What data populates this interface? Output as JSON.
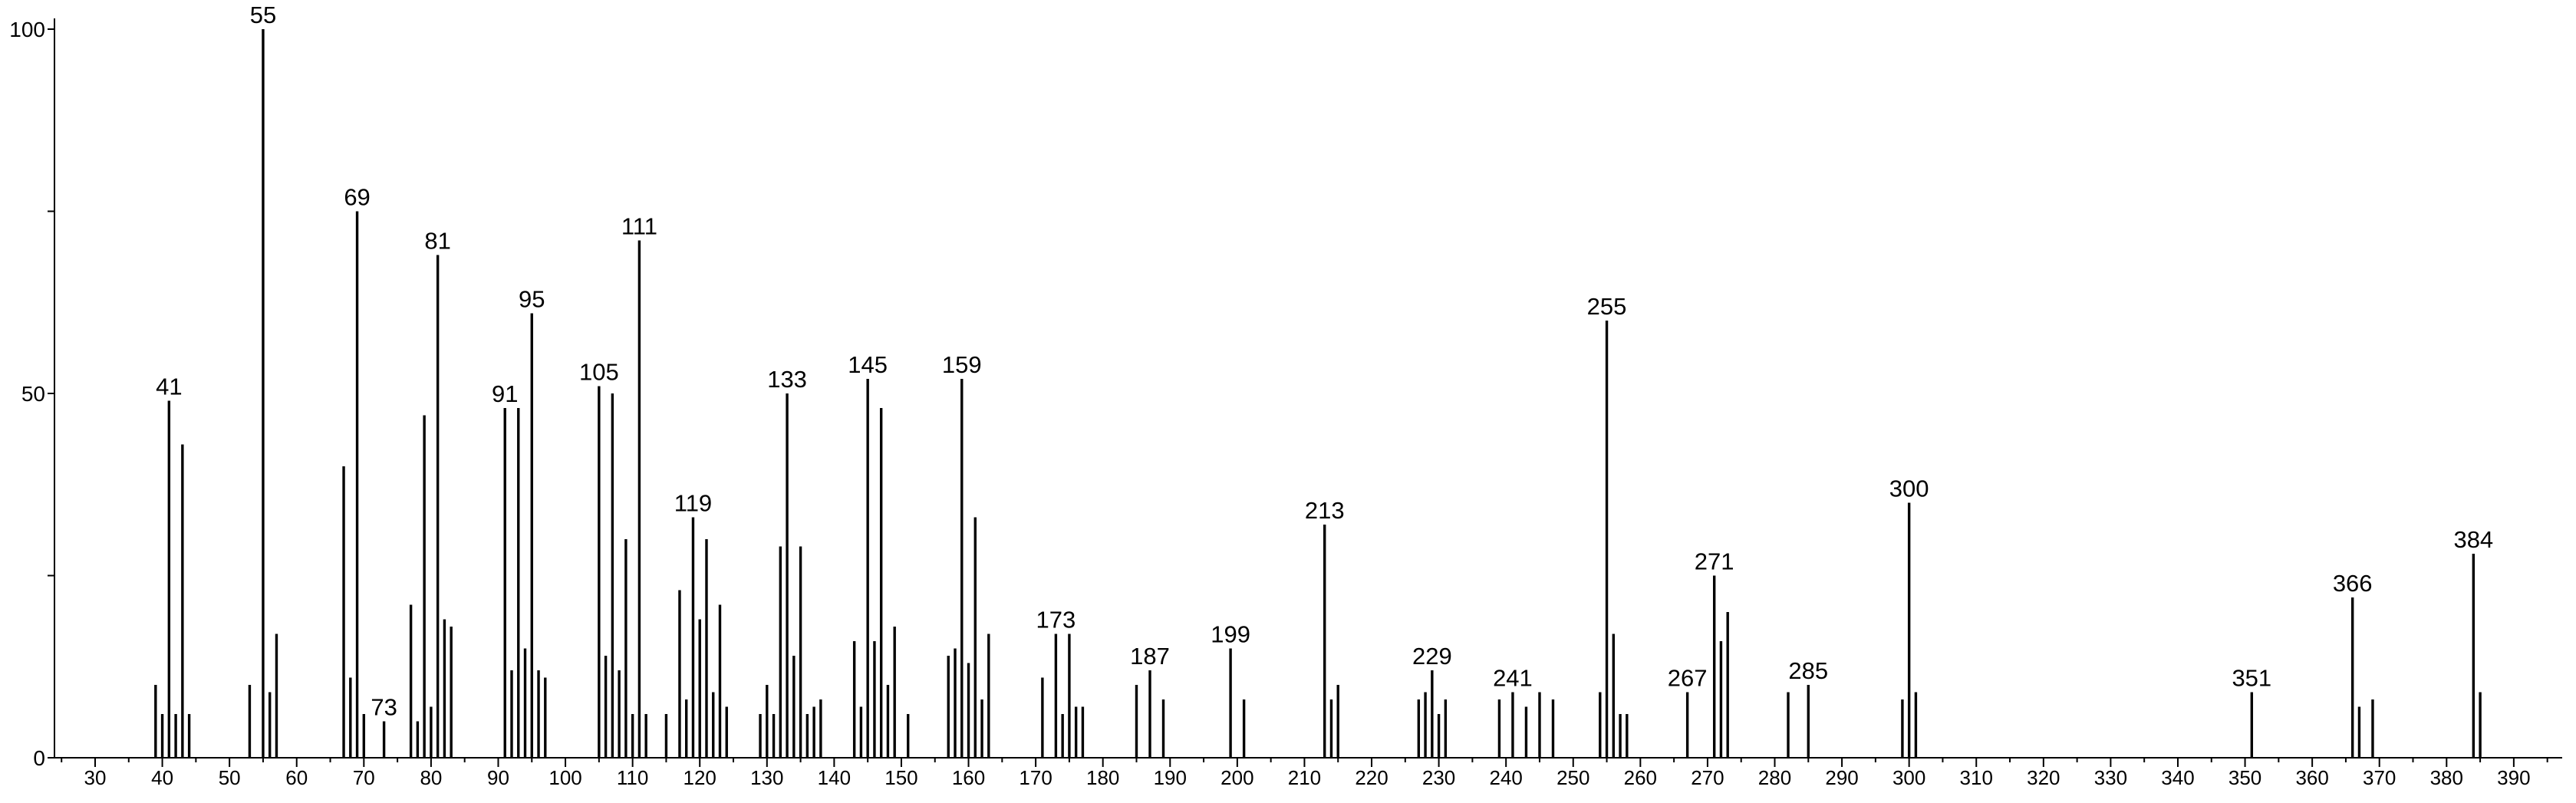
{
  "chart_data": {
    "type": "bar",
    "title": "",
    "xlabel": "",
    "ylabel": "",
    "xlim": [
      23,
      396
    ],
    "ylim": [
      0,
      100
    ],
    "grid": false,
    "x_ticks": [
      30,
      40,
      50,
      60,
      70,
      80,
      90,
      100,
      110,
      120,
      130,
      140,
      150,
      160,
      170,
      180,
      190,
      200,
      210,
      220,
      230,
      240,
      250,
      260,
      270,
      280,
      290,
      300,
      310,
      320,
      330,
      340,
      350,
      360,
      370,
      380,
      390
    ],
    "y_ticks": [
      0,
      50,
      100
    ],
    "peaks": [
      {
        "mz": 39,
        "intensity": 10
      },
      {
        "mz": 40,
        "intensity": 6
      },
      {
        "mz": 41,
        "intensity": 49,
        "label": "41"
      },
      {
        "mz": 42,
        "intensity": 6
      },
      {
        "mz": 43,
        "intensity": 43
      },
      {
        "mz": 44,
        "intensity": 6
      },
      {
        "mz": 53,
        "intensity": 10
      },
      {
        "mz": 55,
        "intensity": 100,
        "label": "55"
      },
      {
        "mz": 56,
        "intensity": 9
      },
      {
        "mz": 57,
        "intensity": 17
      },
      {
        "mz": 67,
        "intensity": 40
      },
      {
        "mz": 68,
        "intensity": 11
      },
      {
        "mz": 69,
        "intensity": 75,
        "label": "69"
      },
      {
        "mz": 70,
        "intensity": 6
      },
      {
        "mz": 73,
        "intensity": 5,
        "label": "73"
      },
      {
        "mz": 77,
        "intensity": 21
      },
      {
        "mz": 78,
        "intensity": 5
      },
      {
        "mz": 79,
        "intensity": 47
      },
      {
        "mz": 80,
        "intensity": 7
      },
      {
        "mz": 81,
        "intensity": 69,
        "label": "81"
      },
      {
        "mz": 82,
        "intensity": 19
      },
      {
        "mz": 83,
        "intensity": 18
      },
      {
        "mz": 91,
        "intensity": 48,
        "label": "91"
      },
      {
        "mz": 92,
        "intensity": 12
      },
      {
        "mz": 93,
        "intensity": 48
      },
      {
        "mz": 94,
        "intensity": 15
      },
      {
        "mz": 95,
        "intensity": 61,
        "label": "95"
      },
      {
        "mz": 96,
        "intensity": 12
      },
      {
        "mz": 97,
        "intensity": 11
      },
      {
        "mz": 105,
        "intensity": 51,
        "label": "105"
      },
      {
        "mz": 106,
        "intensity": 14
      },
      {
        "mz": 107,
        "intensity": 50
      },
      {
        "mz": 108,
        "intensity": 12
      },
      {
        "mz": 109,
        "intensity": 30
      },
      {
        "mz": 110,
        "intensity": 6
      },
      {
        "mz": 111,
        "intensity": 71,
        "label": "111"
      },
      {
        "mz": 112,
        "intensity": 6
      },
      {
        "mz": 115,
        "intensity": 6
      },
      {
        "mz": 117,
        "intensity": 23
      },
      {
        "mz": 118,
        "intensity": 8
      },
      {
        "mz": 119,
        "intensity": 33,
        "label": "119"
      },
      {
        "mz": 120,
        "intensity": 19
      },
      {
        "mz": 121,
        "intensity": 30
      },
      {
        "mz": 122,
        "intensity": 9
      },
      {
        "mz": 123,
        "intensity": 21
      },
      {
        "mz": 124,
        "intensity": 7
      },
      {
        "mz": 129,
        "intensity": 6
      },
      {
        "mz": 130,
        "intensity": 10
      },
      {
        "mz": 131,
        "intensity": 6
      },
      {
        "mz": 132,
        "intensity": 29
      },
      {
        "mz": 133,
        "intensity": 50,
        "label": "133"
      },
      {
        "mz": 134,
        "intensity": 14
      },
      {
        "mz": 135,
        "intensity": 29
      },
      {
        "mz": 136,
        "intensity": 6
      },
      {
        "mz": 137,
        "intensity": 7
      },
      {
        "mz": 138,
        "intensity": 8
      },
      {
        "mz": 143,
        "intensity": 16
      },
      {
        "mz": 144,
        "intensity": 7
      },
      {
        "mz": 145,
        "intensity": 52,
        "label": "145"
      },
      {
        "mz": 146,
        "intensity": 16
      },
      {
        "mz": 147,
        "intensity": 48
      },
      {
        "mz": 148,
        "intensity": 10
      },
      {
        "mz": 149,
        "intensity": 18
      },
      {
        "mz": 151,
        "intensity": 6
      },
      {
        "mz": 157,
        "intensity": 14
      },
      {
        "mz": 158,
        "intensity": 15
      },
      {
        "mz": 159,
        "intensity": 52,
        "label": "159"
      },
      {
        "mz": 160,
        "intensity": 13
      },
      {
        "mz": 161,
        "intensity": 33
      },
      {
        "mz": 162,
        "intensity": 8
      },
      {
        "mz": 163,
        "intensity": 17
      },
      {
        "mz": 171,
        "intensity": 11
      },
      {
        "mz": 173,
        "intensity": 17,
        "label": "173"
      },
      {
        "mz": 174,
        "intensity": 6
      },
      {
        "mz": 175,
        "intensity": 17
      },
      {
        "mz": 176,
        "intensity": 7
      },
      {
        "mz": 177,
        "intensity": 7
      },
      {
        "mz": 185,
        "intensity": 10
      },
      {
        "mz": 187,
        "intensity": 12,
        "label": "187"
      },
      {
        "mz": 189,
        "intensity": 8
      },
      {
        "mz": 199,
        "intensity": 15,
        "label": "199"
      },
      {
        "mz": 201,
        "intensity": 8
      },
      {
        "mz": 213,
        "intensity": 32,
        "label": "213"
      },
      {
        "mz": 214,
        "intensity": 8
      },
      {
        "mz": 215,
        "intensity": 10
      },
      {
        "mz": 227,
        "intensity": 8
      },
      {
        "mz": 228,
        "intensity": 9
      },
      {
        "mz": 229,
        "intensity": 12,
        "label": "229"
      },
      {
        "mz": 230,
        "intensity": 6
      },
      {
        "mz": 231,
        "intensity": 8
      },
      {
        "mz": 239,
        "intensity": 8
      },
      {
        "mz": 241,
        "intensity": 9,
        "label": "241"
      },
      {
        "mz": 243,
        "intensity": 7
      },
      {
        "mz": 245,
        "intensity": 9
      },
      {
        "mz": 247,
        "intensity": 8
      },
      {
        "mz": 254,
        "intensity": 9
      },
      {
        "mz": 255,
        "intensity": 60,
        "label": "255"
      },
      {
        "mz": 256,
        "intensity": 17
      },
      {
        "mz": 257,
        "intensity": 6
      },
      {
        "mz": 258,
        "intensity": 6
      },
      {
        "mz": 267,
        "intensity": 9,
        "label": "267"
      },
      {
        "mz": 271,
        "intensity": 25,
        "label": "271"
      },
      {
        "mz": 272,
        "intensity": 16
      },
      {
        "mz": 273,
        "intensity": 20
      },
      {
        "mz": 282,
        "intensity": 9
      },
      {
        "mz": 285,
        "intensity": 10,
        "label": "285"
      },
      {
        "mz": 299,
        "intensity": 8
      },
      {
        "mz": 300,
        "intensity": 35,
        "label": "300"
      },
      {
        "mz": 301,
        "intensity": 9
      },
      {
        "mz": 351,
        "intensity": 9,
        "label": "351"
      },
      {
        "mz": 366,
        "intensity": 22,
        "label": "366"
      },
      {
        "mz": 367,
        "intensity": 7
      },
      {
        "mz": 369,
        "intensity": 8
      },
      {
        "mz": 384,
        "intensity": 28,
        "label": "384"
      },
      {
        "mz": 385,
        "intensity": 9
      }
    ]
  }
}
